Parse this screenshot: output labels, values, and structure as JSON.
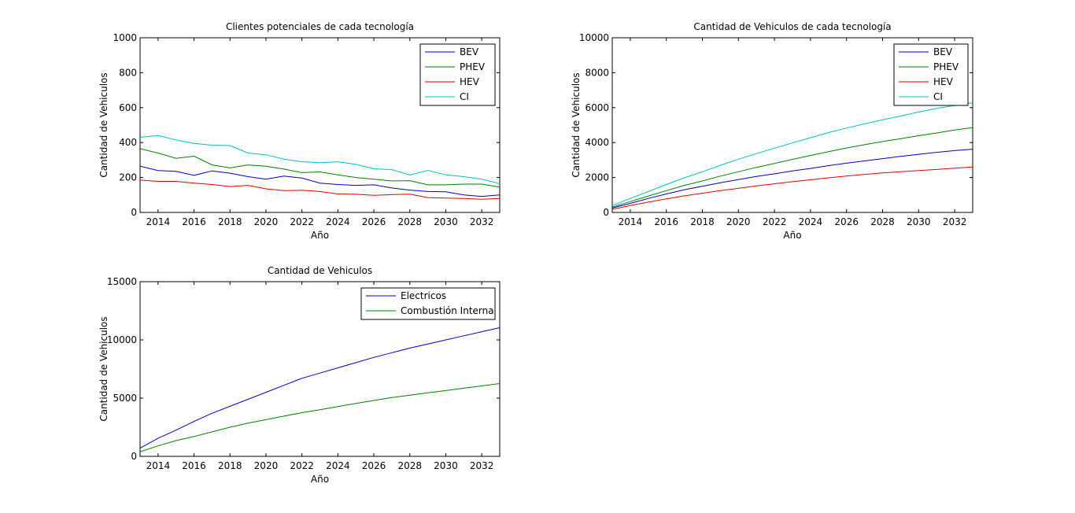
{
  "chart_data": [
    {
      "type": "line",
      "title": "Clientes potenciales de cada tecnología",
      "xlabel": "Año",
      "ylabel": "Cantidad de Vehiculos",
      "xlim": [
        2013,
        2033
      ],
      "ylim": [
        0,
        1000
      ],
      "xticks": [
        2014,
        2016,
        2018,
        2020,
        2022,
        2024,
        2026,
        2028,
        2030,
        2032
      ],
      "yticks": [
        0,
        200,
        400,
        600,
        800,
        1000
      ],
      "legend": "top-right",
      "x": [
        2013,
        2014,
        2015,
        2016,
        2017,
        2018,
        2019,
        2020,
        2021,
        2022,
        2023,
        2024,
        2025,
        2026,
        2027,
        2028,
        2029,
        2030,
        2031,
        2032,
        2033
      ],
      "series": [
        {
          "name": "BEV",
          "color": "#0000bf",
          "values": [
            265,
            240,
            235,
            212,
            238,
            225,
            205,
            190,
            208,
            197,
            168,
            160,
            155,
            158,
            140,
            128,
            120,
            118,
            100,
            92,
            100
          ]
        },
        {
          "name": "PHEV",
          "color": "#007f00",
          "values": [
            365,
            340,
            310,
            322,
            272,
            255,
            272,
            265,
            248,
            228,
            232,
            215,
            200,
            190,
            180,
            182,
            158,
            158,
            162,
            162,
            145
          ]
        },
        {
          "name": "HEV",
          "color": "#e00000",
          "values": [
            185,
            178,
            178,
            168,
            160,
            148,
            155,
            135,
            125,
            127,
            120,
            106,
            104,
            98,
            102,
            105,
            85,
            82,
            80,
            75,
            80
          ]
        },
        {
          "name": "CI",
          "color": "#00bfbf",
          "values": [
            430,
            440,
            415,
            395,
            385,
            383,
            340,
            330,
            305,
            290,
            285,
            290,
            275,
            250,
            245,
            215,
            240,
            215,
            205,
            190,
            165
          ]
        }
      ]
    },
    {
      "type": "line",
      "title": "Cantidad de Vehiculos de cada tecnología",
      "xlabel": "Año",
      "ylabel": "Cantidad de Vehiculos",
      "xlim": [
        2013,
        2033
      ],
      "ylim": [
        0,
        10000
      ],
      "xticks": [
        2014,
        2016,
        2018,
        2020,
        2022,
        2024,
        2026,
        2028,
        2030,
        2032
      ],
      "yticks": [
        0,
        2000,
        4000,
        6000,
        8000,
        10000
      ],
      "legend": "top-right",
      "x": [
        2013,
        2014,
        2015,
        2016,
        2017,
        2018,
        2019,
        2020,
        2021,
        2022,
        2023,
        2024,
        2025,
        2026,
        2027,
        2028,
        2029,
        2030,
        2031,
        2032,
        2033
      ],
      "series": [
        {
          "name": "BEV",
          "color": "#0000bf",
          "values": [
            250,
            520,
            800,
            1060,
            1300,
            1500,
            1700,
            1880,
            2060,
            2210,
            2380,
            2520,
            2680,
            2820,
            2950,
            3080,
            3210,
            3330,
            3440,
            3540,
            3620
          ]
        },
        {
          "name": "PHEV",
          "color": "#007f00",
          "values": [
            300,
            620,
            940,
            1250,
            1550,
            1800,
            2080,
            2330,
            2580,
            2800,
            3040,
            3260,
            3480,
            3690,
            3880,
            4060,
            4220,
            4390,
            4550,
            4720,
            4850
          ]
        },
        {
          "name": "HEV",
          "color": "#e00000",
          "values": [
            180,
            390,
            590,
            780,
            950,
            1100,
            1250,
            1380,
            1520,
            1640,
            1760,
            1870,
            1980,
            2080,
            2180,
            2260,
            2330,
            2400,
            2460,
            2530,
            2600
          ]
        },
        {
          "name": "CI",
          "color": "#00bfbf",
          "values": [
            390,
            800,
            1200,
            1600,
            1980,
            2330,
            2700,
            3050,
            3370,
            3680,
            3980,
            4280,
            4570,
            4830,
            5070,
            5300,
            5520,
            5750,
            5960,
            6120,
            6280
          ]
        }
      ]
    },
    {
      "type": "line",
      "title": "Cantidad de Vehiculos",
      "xlabel": "Año",
      "ylabel": "Cantidad de Vehiculos",
      "xlim": [
        2013,
        2033
      ],
      "ylim": [
        0,
        15000
      ],
      "xticks": [
        2014,
        2016,
        2018,
        2020,
        2022,
        2024,
        2026,
        2028,
        2030,
        2032
      ],
      "yticks": [
        0,
        5000,
        10000,
        15000
      ],
      "legend": "top-right",
      "x": [
        2013,
        2014,
        2015,
        2016,
        2017,
        2018,
        2019,
        2020,
        2021,
        2022,
        2023,
        2024,
        2025,
        2026,
        2027,
        2028,
        2029,
        2030,
        2031,
        2032,
        2033
      ],
      "series": [
        {
          "name": "Electricos",
          "color": "#0000bf",
          "values": [
            700,
            1550,
            2250,
            3000,
            3700,
            4300,
            4900,
            5500,
            6100,
            6700,
            7150,
            7600,
            8050,
            8500,
            8900,
            9300,
            9650,
            10000,
            10350,
            10700,
            11050
          ]
        },
        {
          "name": "Combustión Interna",
          "color": "#007f00",
          "values": [
            400,
            900,
            1350,
            1700,
            2100,
            2500,
            2850,
            3150,
            3450,
            3750,
            4000,
            4280,
            4550,
            4800,
            5050,
            5250,
            5450,
            5650,
            5850,
            6050,
            6250
          ]
        }
      ]
    }
  ]
}
